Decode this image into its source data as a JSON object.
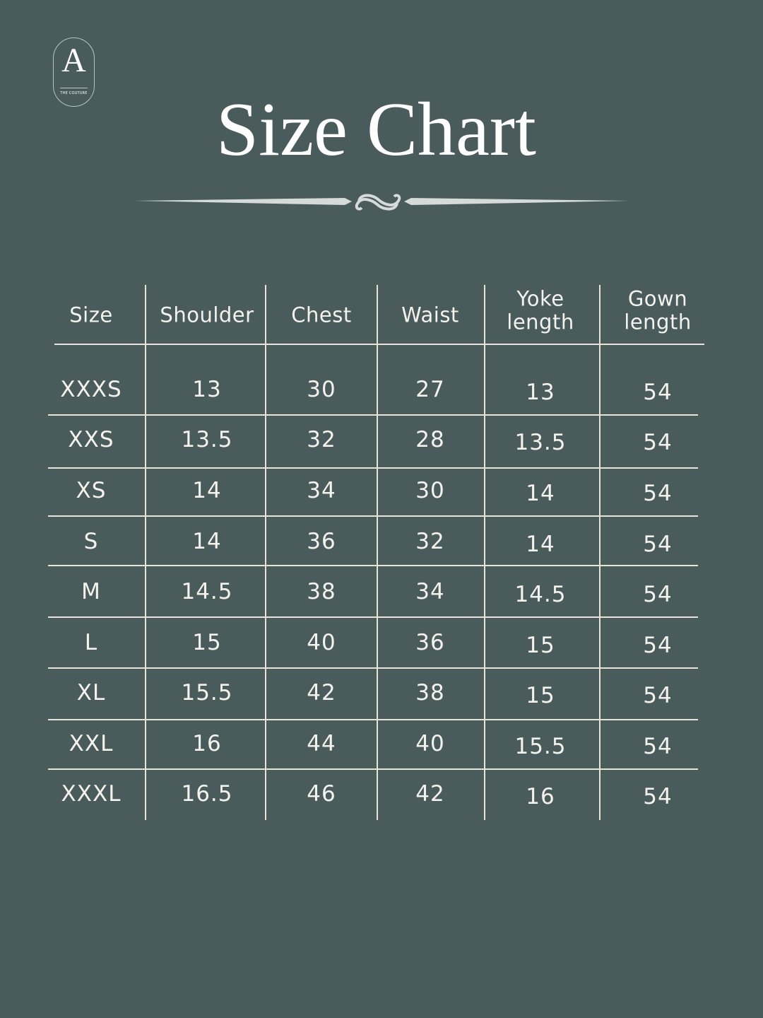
{
  "logo": {
    "letter": "A",
    "subtitle": "THE COUTURE"
  },
  "title": "Size Chart",
  "table": {
    "headers": [
      "Size",
      "Shoulder",
      "Chest",
      "Waist",
      "Yoke\nlength",
      "Gown\nlength"
    ],
    "rows": [
      [
        "XXXS",
        "13",
        "30",
        "27",
        "13",
        "54"
      ],
      [
        "XXS",
        "13.5",
        "32",
        "28",
        "13.5",
        "54"
      ],
      [
        "XS",
        "14",
        "34",
        "30",
        "14",
        "54"
      ],
      [
        "S",
        "14",
        "36",
        "32",
        "14",
        "54"
      ],
      [
        "M",
        "14.5",
        "38",
        "34",
        "14.5",
        "54"
      ],
      [
        "L",
        "15",
        "40",
        "36",
        "15",
        "54"
      ],
      [
        "XL",
        "15.5",
        "42",
        "38",
        "15",
        "54"
      ],
      [
        "XXL",
        "16",
        "44",
        "40",
        "15.5",
        "54"
      ],
      [
        "XXXL",
        "16.5",
        "46",
        "42",
        "16",
        "54"
      ]
    ]
  },
  "colors": {
    "background": "#4a5b5c",
    "text": "#f4f2ec",
    "lines": "#e8e4da"
  }
}
